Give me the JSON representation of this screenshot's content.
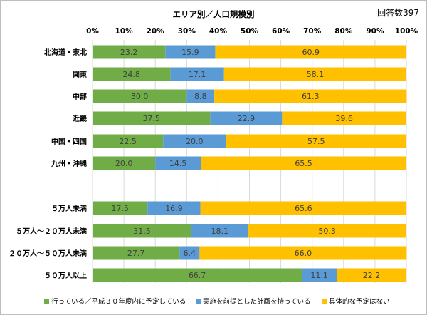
{
  "chart_data": {
    "type": "bar",
    "orientation": "horizontal",
    "stacked": true,
    "title": "エリア別／人口規模別",
    "note": "回答数397",
    "xlim": [
      0,
      100
    ],
    "x_ticks": [
      "0%",
      "10%",
      "20%",
      "30%",
      "40%",
      "50%",
      "60%",
      "70%",
      "80%",
      "90%",
      "100%"
    ],
    "grid": true,
    "legend_position": "bottom",
    "categories": [
      "北海道・東北",
      "関東",
      "中部",
      "近畿",
      "中国・四国",
      "九州・沖縄",
      "",
      "５万人未満",
      "５万人～２０万人未満",
      "２０万人～５０万人未満",
      "５０万人以上"
    ],
    "series": [
      {
        "name": "行っている／平成３０年度内に予定している",
        "color": "#70ad47",
        "values": [
          23.2,
          24.8,
          30.0,
          37.5,
          22.5,
          20.0,
          null,
          17.5,
          31.5,
          27.7,
          66.7
        ]
      },
      {
        "name": "実施を前提とした計画を持っている",
        "color": "#5b9bd5",
        "values": [
          15.9,
          17.1,
          8.8,
          22.9,
          20.0,
          14.5,
          null,
          16.9,
          18.1,
          6.4,
          11.1
        ]
      },
      {
        "name": "具体的な予定はない",
        "color": "#ffc000",
        "values": [
          60.9,
          58.1,
          61.3,
          39.6,
          57.5,
          65.5,
          null,
          65.6,
          50.3,
          66.0,
          22.2
        ]
      }
    ],
    "label_color": "#404040"
  }
}
